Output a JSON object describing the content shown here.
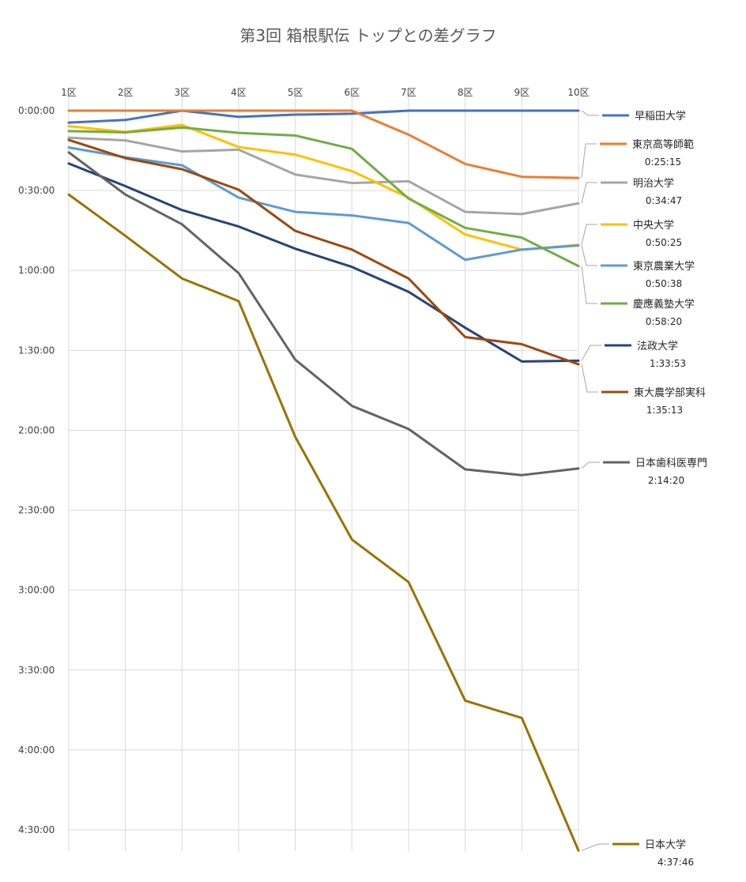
{
  "chart_data": {
    "type": "line",
    "title": "第3回 箱根駅伝 トップとの差グラフ",
    "xlabel": "",
    "ylabel": "",
    "categories": [
      "1区",
      "2区",
      "3区",
      "4区",
      "5区",
      "6区",
      "7区",
      "8区",
      "9区",
      "10区"
    ],
    "y_unit": "seconds behind leader (axis inverted, 0 at top)",
    "y_ticks": [
      "0:00:00",
      "0:30:00",
      "1:00:00",
      "1:30:00",
      "2:00:00",
      "2:30:00",
      "3:00:00",
      "3:30:00",
      "4:00:00",
      "4:30:00"
    ],
    "ylim": [
      0,
      16680
    ],
    "grid": true,
    "legend_position": "right",
    "series": [
      {
        "name": "早稲田大学",
        "color": "#4472C4",
        "values": [
          270,
          210,
          0,
          140,
          90,
          70,
          0,
          0,
          0,
          0
        ]
      },
      {
        "name": "東京高等師範",
        "final": "0:25:15",
        "color": "#ED7D31",
        "values": [
          0,
          0,
          0,
          0,
          0,
          0,
          540,
          1200,
          1490,
          1515
        ]
      },
      {
        "name": "明治大学",
        "final": "0:34:47",
        "color": "#A5A5A5",
        "values": [
          610,
          670,
          920,
          880,
          1440,
          1630,
          1590,
          2280,
          2330,
          2087
        ]
      },
      {
        "name": "中央大学",
        "final": "0:50:25",
        "color": "#FFC000",
        "values": [
          350,
          480,
          320,
          820,
          990,
          1360,
          1960,
          2790,
          3130,
          3025
        ]
      },
      {
        "name": "東京農業大学",
        "final": "0:50:38",
        "color": "#5B9BD5",
        "values": [
          830,
          1050,
          1230,
          1960,
          2280,
          2360,
          2530,
          3360,
          3130,
          3038
        ]
      },
      {
        "name": "慶應義塾大学",
        "final": "0:58:20",
        "color": "#70AD47",
        "values": [
          460,
          490,
          380,
          500,
          560,
          860,
          1980,
          2640,
          2860,
          3500
        ]
      },
      {
        "name": "法政大学",
        "final": "1:33:53",
        "color": "#264478",
        "values": [
          1190,
          1700,
          2240,
          2610,
          3110,
          3520,
          4080,
          4890,
          5650,
          5633
        ]
      },
      {
        "name": "東大農学部実科",
        "final": "1:35:13",
        "color": "#9E480E",
        "values": [
          660,
          1070,
          1320,
          1780,
          2710,
          3130,
          3780,
          5100,
          5260,
          5713
        ]
      },
      {
        "name": "日本歯科医専門",
        "final": "2:14:20",
        "color": "#636363",
        "values": [
          940,
          1890,
          2560,
          3660,
          5610,
          6650,
          7170,
          8080,
          8210,
          8060
        ]
      },
      {
        "name": "日本大学",
        "final": "4:37:46",
        "color": "#997300",
        "values": [
          1890,
          2820,
          3780,
          4290,
          7350,
          9660,
          10620,
          13290,
          13680,
          16666
        ]
      }
    ]
  }
}
